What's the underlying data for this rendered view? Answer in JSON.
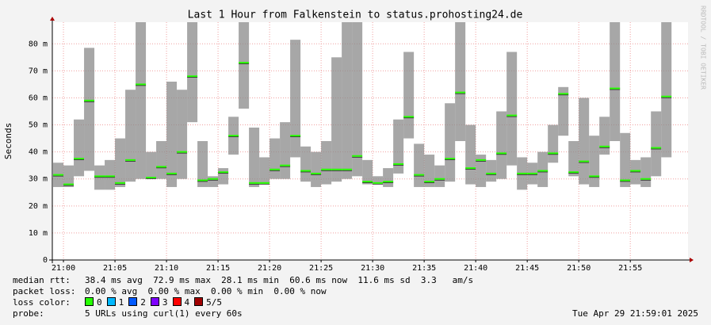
{
  "chart_data": {
    "type": "smokeping",
    "title": "Last 1 Hour from Falkenstein to status.prohosting24.de",
    "y_label": "Seconds",
    "side_label": "RRDTOOL / TOBI OETIKER",
    "x": [
      -1,
      0,
      1,
      2,
      3,
      4,
      5,
      6,
      7,
      8,
      9,
      10,
      11,
      12,
      13,
      14,
      15,
      16,
      17,
      18,
      19,
      20,
      21,
      22,
      23,
      24,
      25,
      26,
      27,
      28,
      29,
      30,
      31,
      32,
      33,
      34,
      35,
      36,
      37,
      38,
      39,
      40,
      41,
      42,
      43,
      44,
      45,
      46,
      47,
      48,
      49,
      50,
      51,
      52,
      53,
      54,
      55,
      56,
      57,
      58
    ],
    "median": [
      31.5,
      28,
      37.5,
      59,
      31,
      31,
      28.5,
      37,
      65,
      30.5,
      34.5,
      32,
      40,
      68,
      29.5,
      30,
      32.5,
      46,
      73,
      28.5,
      28.5,
      33.5,
      35,
      46,
      33,
      32,
      33.5,
      33.5,
      33.5,
      38.5,
      29,
      28.5,
      29,
      35.5,
      53,
      31.5,
      29,
      30,
      37.5,
      62,
      34,
      37,
      32,
      39.5,
      53.5,
      32,
      32,
      33,
      39.5,
      61.5,
      32.5,
      36.5,
      31,
      42,
      63.5,
      29.5,
      33,
      30,
      41.5,
      60.5
    ],
    "smoke_low": [
      27,
      27,
      31,
      33,
      26,
      26,
      27,
      29,
      30,
      30,
      30,
      27,
      30,
      51,
      27,
      27,
      28,
      39,
      56,
      27,
      28,
      30,
      30,
      38,
      29,
      27,
      28,
      29,
      30,
      31,
      28,
      28,
      27,
      32,
      45,
      27,
      27,
      27,
      29,
      44,
      28,
      27,
      29,
      30,
      35,
      26,
      28,
      27,
      36,
      46,
      31,
      28,
      27,
      39,
      44,
      27,
      28,
      27,
      31,
      38
    ],
    "smoke_high": [
      36,
      35,
      52,
      78.5,
      35,
      37,
      45,
      63,
      88,
      40,
      44,
      66,
      63,
      88,
      44,
      31,
      34,
      53,
      88,
      49,
      38,
      45,
      51,
      81.5,
      42,
      40,
      44,
      75,
      88,
      88,
      37,
      31,
      34,
      52,
      77,
      43,
      39,
      35,
      58,
      88,
      50,
      39,
      37,
      55,
      77,
      38,
      36,
      40,
      50,
      64,
      44,
      60,
      46,
      53,
      88,
      47,
      37,
      38,
      55,
      88
    ],
    "smoke_color": "#8a8a8a",
    "median_color": "#26ff00",
    "xlim": [
      -1.08,
      60.6
    ],
    "xticks": [
      {
        "value": 0,
        "label": "21:00"
      },
      {
        "value": 5,
        "label": "21:05"
      },
      {
        "value": 10,
        "label": "21:10"
      },
      {
        "value": 15,
        "label": "21:15"
      },
      {
        "value": 20,
        "label": "21:20"
      },
      {
        "value": 25,
        "label": "21:25"
      },
      {
        "value": 30,
        "label": "21:30"
      },
      {
        "value": 35,
        "label": "21:35"
      },
      {
        "value": 40,
        "label": "21:40"
      },
      {
        "value": 45,
        "label": "21:45"
      },
      {
        "value": 50,
        "label": "21:50"
      },
      {
        "value": 55,
        "label": "21:55"
      }
    ],
    "ylim": [
      0,
      88
    ],
    "yticks": [
      0,
      {
        "value": 10,
        "label": "10 m"
      },
      {
        "value": 20,
        "label": "20 m"
      },
      {
        "value": 30,
        "label": "30 m"
      },
      {
        "value": 40,
        "label": "40 m"
      },
      {
        "value": 50,
        "label": "50 m"
      },
      {
        "value": 60,
        "label": "60 m"
      },
      {
        "value": 70,
        "label": "70 m"
      },
      {
        "value": 80,
        "label": "80 m"
      }
    ],
    "grid": true
  },
  "footer": {
    "lines": [
      {
        "label": "median rtt:",
        "text": "38.4 ms avg  72.9 ms max  28.1 ms min  60.6 ms now  11.6 ms sd  3.3   am/s"
      },
      {
        "label": "packet loss:",
        "text": "0.00 % avg  0.00 % max  0.00 % min  0.00 % now"
      }
    ],
    "loss_color_label": "loss color:",
    "loss_colors": [
      {
        "name": "0",
        "color": "#26ff00"
      },
      {
        "name": "1",
        "color": "#00b8ff"
      },
      {
        "name": "2",
        "color": "#0059ff"
      },
      {
        "name": "3",
        "color": "#7e00ff"
      },
      {
        "name": "4",
        "color": "#ff0000"
      },
      {
        "name": "5/5",
        "color": "#a10000"
      }
    ],
    "probe_label": "probe:",
    "probe": "5 URLs using curl(1) every 60s",
    "timestamp": "Tue Apr 29 21:59:01 2025"
  }
}
